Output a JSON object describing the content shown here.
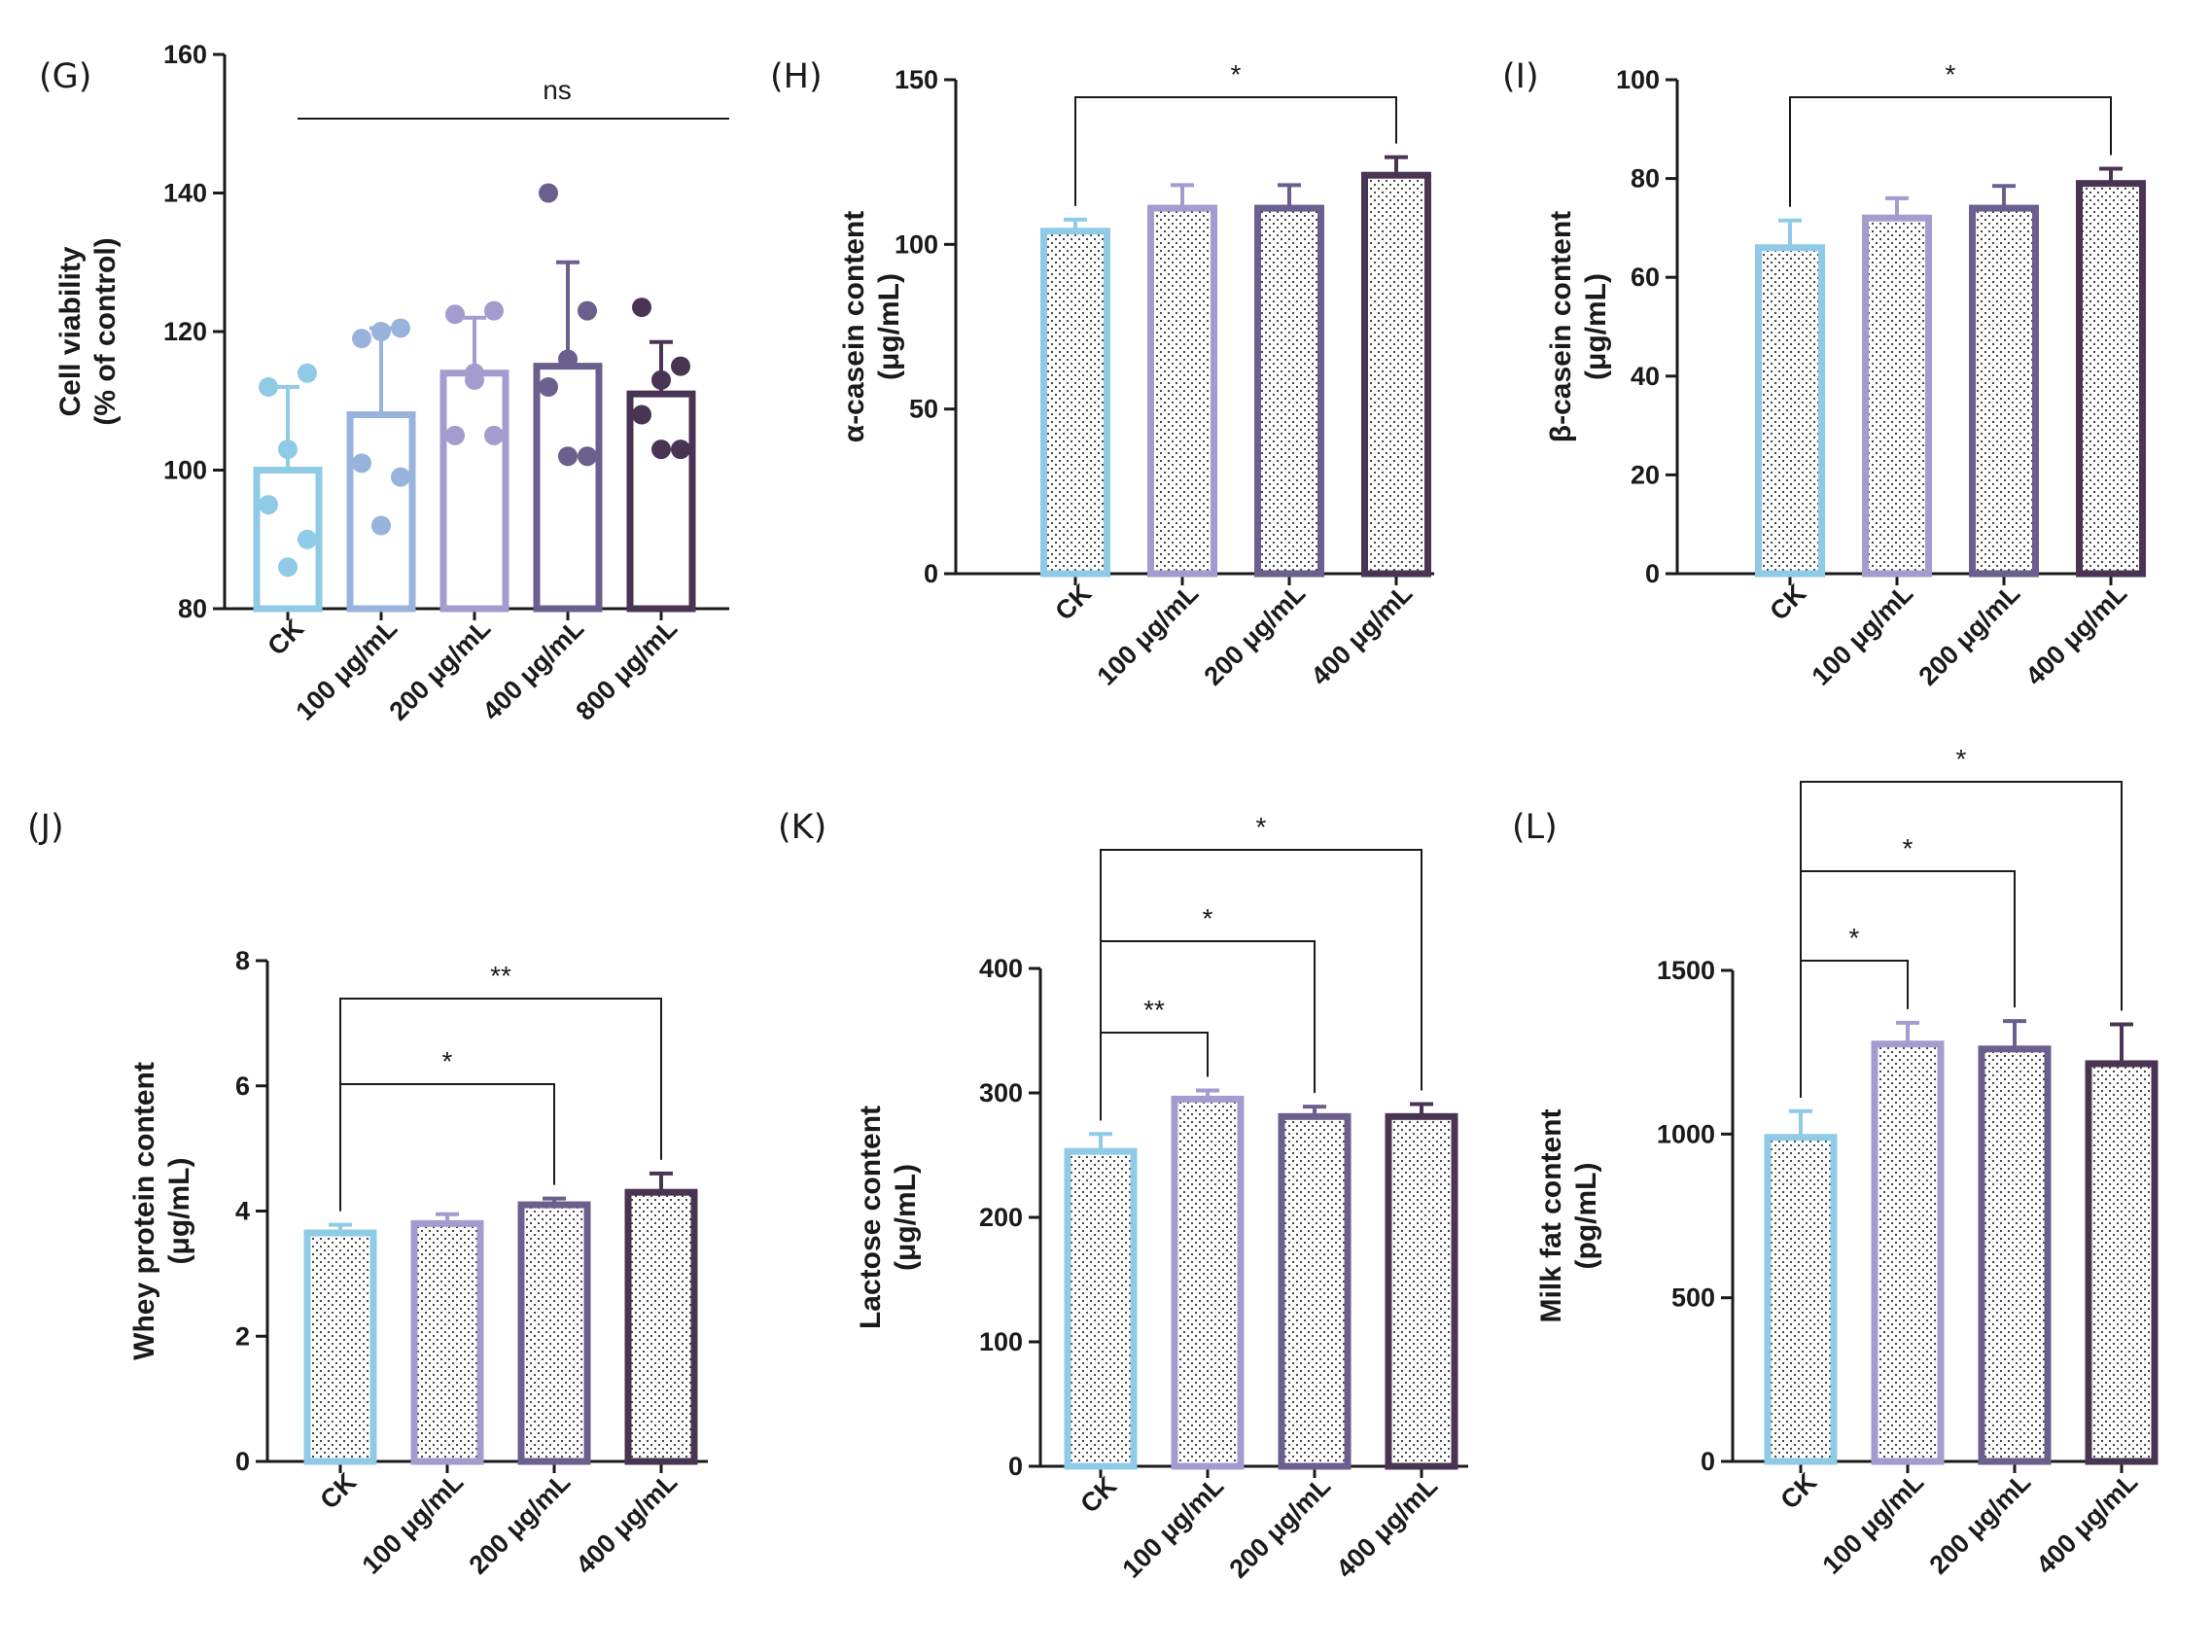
{
  "chart_data": [
    {
      "panel": "(G)",
      "type": "bar",
      "categories": [
        "CK",
        "100 μg/mL",
        "200 μg/mL",
        "400 μg/mL",
        "800 μg/mL"
      ],
      "values": [
        100,
        108,
        114,
        115,
        111
      ],
      "errors": [
        12,
        12.5,
        8,
        15,
        7.5
      ],
      "points": [
        [
          112,
          114,
          103,
          95,
          90,
          86
        ],
        [
          119,
          120.5,
          120,
          101,
          99,
          92
        ],
        [
          122.5,
          123,
          114,
          105,
          105,
          113
        ],
        [
          140,
          123,
          116,
          112,
          102,
          102
        ],
        [
          123.5,
          115,
          113,
          108,
          103,
          103
        ]
      ],
      "ylabel": "Cell viability",
      "ylabel2": "(% of control)",
      "ylim": [
        80,
        160
      ],
      "yticks": [
        80,
        100,
        120,
        140,
        160
      ],
      "significance": [
        {
          "from": 0,
          "to": 4,
          "label": "ns",
          "style": "line"
        }
      ],
      "colors": [
        "#8fcbe6",
        "#99b3dc",
        "#a49bcf",
        "#6b5f8e",
        "#4a3454"
      ]
    },
    {
      "panel": "(H)",
      "type": "bar",
      "categories": [
        "CK",
        "100 μg/mL",
        "200 μg/mL",
        "400 μg/mL"
      ],
      "values": [
        104,
        111,
        111,
        121
      ],
      "errors": [
        3.5,
        7,
        7,
        5.5
      ],
      "ylabel": "α-casein content",
      "ylabel2": "(μg/mL)",
      "ylim": [
        0,
        150
      ],
      "yticks": [
        0,
        50,
        100,
        150
      ],
      "significance": [
        {
          "from": 0,
          "to": 3,
          "label": "*",
          "style": "bracket"
        }
      ],
      "colors": [
        "#8fcbe6",
        "#a49bcf",
        "#6b5f8e",
        "#4a3454"
      ]
    },
    {
      "panel": "(I)",
      "type": "bar",
      "categories": [
        "CK",
        "100 μg/mL",
        "200 μg/mL",
        "400 μg/mL"
      ],
      "values": [
        66,
        72,
        74,
        79
      ],
      "errors": [
        5.5,
        4,
        4.5,
        3
      ],
      "ylabel": "β-casein content",
      "ylabel2": "(μg/mL)",
      "ylim": [
        0,
        100
      ],
      "yticks": [
        0,
        20,
        40,
        60,
        80,
        100
      ],
      "significance": [
        {
          "from": 0,
          "to": 3,
          "label": "*",
          "style": "bracket"
        }
      ],
      "colors": [
        "#8fcbe6",
        "#a49bcf",
        "#6b5f8e",
        "#4a3454"
      ]
    },
    {
      "panel": "(J)",
      "type": "bar",
      "categories": [
        "CK",
        "100 μg/mL",
        "200 μg/mL",
        "400 μg/mL"
      ],
      "values": [
        3.65,
        3.8,
        4.1,
        4.3
      ],
      "errors": [
        0.13,
        0.15,
        0.1,
        0.3
      ],
      "ylabel": "Whey protein content",
      "ylabel2": "(μg/mL)",
      "ylim": [
        0,
        8
      ],
      "yticks": [
        0,
        2,
        4,
        6,
        8
      ],
      "significance": [
        {
          "from": 0,
          "to": 2,
          "label": "*",
          "style": "bracket"
        },
        {
          "from": 0,
          "to": 3,
          "label": "**",
          "style": "bracket"
        }
      ],
      "colors": [
        "#8fcbe6",
        "#a49bcf",
        "#6b5f8e",
        "#4a3454"
      ]
    },
    {
      "panel": "(K)",
      "type": "bar",
      "categories": [
        "CK",
        "100 μg/mL",
        "200 μg/mL",
        "400 μg/mL"
      ],
      "values": [
        253,
        295,
        281,
        281
      ],
      "errors": [
        14,
        7,
        8,
        10
      ],
      "ylabel": "Lactose content",
      "ylabel2": "(μg/mL)",
      "ylim": [
        0,
        400
      ],
      "yticks": [
        0,
        100,
        200,
        300,
        400
      ],
      "significance": [
        {
          "from": 0,
          "to": 1,
          "label": "**",
          "style": "bracket"
        },
        {
          "from": 0,
          "to": 2,
          "label": "*",
          "style": "bracket"
        },
        {
          "from": 0,
          "to": 3,
          "label": "*",
          "style": "bracket"
        }
      ],
      "colors": [
        "#8fcbe6",
        "#a49bcf",
        "#6b5f8e",
        "#4a3454"
      ]
    },
    {
      "panel": "(L)",
      "type": "bar",
      "categories": [
        "CK",
        "100 μg/mL",
        "200 μg/mL",
        "400 μg/mL"
      ],
      "values": [
        990,
        1275,
        1260,
        1215
      ],
      "errors": [
        80,
        65,
        85,
        120
      ],
      "ylabel": "Milk fat content",
      "ylabel2": "(pg/mL)",
      "ylim": [
        0,
        1500
      ],
      "yticks": [
        0,
        500,
        1000,
        1500
      ],
      "significance": [
        {
          "from": 0,
          "to": 1,
          "label": "*",
          "style": "bracket"
        },
        {
          "from": 0,
          "to": 2,
          "label": "*",
          "style": "bracket"
        },
        {
          "from": 0,
          "to": 3,
          "label": "*",
          "style": "bracket"
        }
      ],
      "colors": [
        "#8fcbe6",
        "#a49bcf",
        "#6b5f8e",
        "#4a3454"
      ]
    }
  ]
}
